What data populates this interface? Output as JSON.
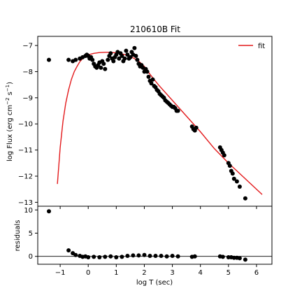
{
  "chart_data": [
    {
      "type": "scatter",
      "title": "210610B Fit",
      "xlabel": "",
      "ylabel_main": "log Flux (erg cm",
      "ylabel_sup1": "−2",
      "ylabel_mid": " s",
      "ylabel_sup2": "−1",
      "ylabel_end": ")",
      "xlim": [
        -1.8,
        6.55
      ],
      "ylim": [
        -13.15,
        -6.65
      ],
      "yticks": [
        -7,
        -8,
        -9,
        -10,
        -11,
        -12,
        -13
      ],
      "ytick_labels": [
        "−7",
        "−8",
        "−9",
        "−10",
        "−11",
        "−12",
        "−13"
      ],
      "legend": {
        "position": "top-right",
        "entries": [
          "fit"
        ]
      },
      "series": [
        {
          "name": "fit",
          "kind": "line",
          "color": "#e31a1c",
          "x": [
            -1.1,
            -1.0,
            -0.9,
            -0.8,
            -0.7,
            -0.6,
            -0.5,
            -0.4,
            -0.3,
            -0.2,
            -0.1,
            0.0,
            0.2,
            0.4,
            0.6,
            0.8,
            1.0,
            1.2,
            1.4,
            1.6,
            1.8,
            2.0,
            2.2,
            2.5,
            3.0,
            3.5,
            4.0,
            4.5,
            5.0,
            5.5,
            6.2
          ],
          "y": [
            -12.3,
            -10.9,
            -9.9,
            -9.2,
            -8.7,
            -8.3,
            -8.0,
            -7.8,
            -7.62,
            -7.5,
            -7.42,
            -7.36,
            -7.3,
            -7.27,
            -7.26,
            -7.26,
            -7.28,
            -7.32,
            -7.38,
            -7.47,
            -7.6,
            -7.8,
            -8.1,
            -8.5,
            -9.1,
            -9.7,
            -10.3,
            -10.95,
            -11.5,
            -12.0,
            -12.7
          ]
        },
        {
          "kind": "points",
          "color": "#000000",
          "x": [
            -1.4,
            -0.7,
            -0.55,
            -0.45,
            -0.3,
            -0.2,
            -0.1,
            -0.05,
            0.0,
            0.05,
            0.1,
            0.15,
            0.2,
            0.25,
            0.3,
            0.35,
            0.4,
            0.45,
            0.5,
            0.55,
            0.6,
            0.7,
            0.75,
            0.8,
            0.85,
            0.9,
            0.95,
            1.0,
            1.05,
            1.1,
            1.15,
            1.2,
            1.25,
            1.3,
            1.35,
            1.4,
            1.45,
            1.5,
            1.55,
            1.6,
            1.65,
            1.7,
            1.75,
            1.8,
            1.85,
            1.9,
            1.95,
            2.0,
            2.05,
            2.1,
            2.15,
            2.2,
            2.25,
            2.3,
            2.35,
            2.4,
            2.45,
            2.5,
            2.55,
            2.6,
            2.65,
            2.7,
            2.75,
            2.8,
            2.85,
            2.9,
            2.95,
            3.0,
            3.05,
            3.1,
            3.15,
            3.2,
            3.7,
            3.75,
            3.8,
            3.85,
            4.7,
            4.75,
            4.8,
            4.85,
            5.0,
            5.05,
            5.1,
            5.15,
            5.2,
            5.3,
            5.4,
            5.6
          ],
          "y": [
            -7.55,
            -7.55,
            -7.6,
            -7.55,
            -7.5,
            -7.45,
            -7.4,
            -7.35,
            -7.4,
            -7.5,
            -7.45,
            -7.55,
            -7.7,
            -7.8,
            -7.85,
            -7.75,
            -7.65,
            -7.85,
            -7.6,
            -7.7,
            -7.9,
            -7.55,
            -7.4,
            -7.3,
            -7.5,
            -7.6,
            -7.45,
            -7.35,
            -7.25,
            -7.5,
            -7.3,
            -7.4,
            -7.6,
            -7.5,
            -7.2,
            -7.35,
            -7.5,
            -7.45,
            -7.25,
            -7.35,
            -7.1,
            -7.4,
            -7.55,
            -7.7,
            -7.8,
            -7.75,
            -7.85,
            -8.0,
            -7.9,
            -8.0,
            -8.2,
            -8.35,
            -8.45,
            -8.3,
            -8.55,
            -8.6,
            -8.7,
            -8.75,
            -8.85,
            -8.9,
            -8.95,
            -9.0,
            -9.1,
            -9.15,
            -9.2,
            -9.25,
            -9.3,
            -9.35,
            -9.35,
            -9.4,
            -9.5,
            -9.5,
            -10.1,
            -10.2,
            -10.25,
            -10.15,
            -10.9,
            -11.0,
            -11.1,
            -11.2,
            -11.5,
            -11.6,
            -11.8,
            -11.9,
            -12.1,
            -12.2,
            -12.4,
            -12.85
          ]
        }
      ]
    },
    {
      "type": "scatter",
      "title": "",
      "xlabel": "log T (sec)",
      "ylabel": "residuals",
      "xlim": [
        -1.8,
        6.55
      ],
      "ylim": [
        -1.7,
        10.8
      ],
      "yticks": [
        0,
        5,
        10
      ],
      "ytick_labels": [
        "0",
        "5",
        "10"
      ],
      "xticks": [
        -1,
        0,
        1,
        2,
        3,
        4,
        5,
        6
      ],
      "xtick_labels": [
        "−1",
        "0",
        "1",
        "2",
        "3",
        "4",
        "5",
        "6"
      ],
      "reference_line": 0,
      "series": [
        {
          "kind": "points",
          "color": "#000000",
          "x": [
            -1.4,
            -0.7,
            -0.55,
            -0.45,
            -0.3,
            -0.2,
            -0.1,
            0.0,
            0.2,
            0.4,
            0.6,
            0.8,
            1.0,
            1.2,
            1.4,
            1.6,
            1.8,
            2.0,
            2.2,
            2.4,
            2.6,
            2.8,
            3.0,
            3.2,
            3.7,
            3.8,
            4.7,
            4.8,
            5.0,
            5.1,
            5.2,
            5.3,
            5.4,
            5.6
          ],
          "y": [
            9.7,
            1.3,
            0.7,
            0.3,
            0.1,
            -0.1,
            0.0,
            -0.2,
            -0.1,
            -0.2,
            -0.1,
            0.0,
            -0.2,
            -0.1,
            0.1,
            0.2,
            0.2,
            0.3,
            0.1,
            0.1,
            0.1,
            0.0,
            0.1,
            0.0,
            -0.1,
            0.0,
            0.0,
            -0.1,
            -0.2,
            -0.2,
            -0.3,
            -0.3,
            -0.4,
            -0.7
          ]
        }
      ]
    }
  ]
}
